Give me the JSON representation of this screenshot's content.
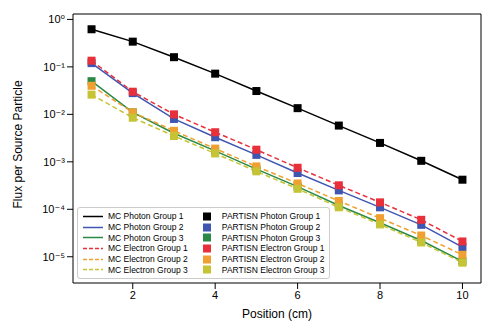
{
  "chart_data": {
    "type": "line",
    "xlabel": "Position (cm)",
    "ylabel": "Flux per Source Particle",
    "log": "y",
    "legend": "lower left",
    "x": [
      1,
      2,
      3,
      4,
      5,
      6,
      7,
      8,
      9,
      10
    ],
    "xlim": [
      0.55,
      10.45
    ],
    "xticks": [
      2,
      4,
      6,
      8,
      10
    ],
    "ylim": [
      2.8e-06,
      1.3
    ],
    "yticks": [
      {
        "value": 1e-05,
        "label": "10⁻⁵"
      },
      {
        "value": 0.0001,
        "label": "10⁻⁴"
      },
      {
        "value": 0.001,
        "label": "10⁻³"
      },
      {
        "value": 0.01,
        "label": "10⁻²"
      },
      {
        "value": 0.1,
        "label": "10⁻¹"
      },
      {
        "value": 1,
        "label": "10⁰"
      }
    ],
    "series": [
      {
        "name": "MC Photon Group 1",
        "color": "#000000",
        "line_style": "solid",
        "marker": "none",
        "values": [
          0.62,
          0.34,
          0.16,
          0.072,
          0.031,
          0.0135,
          0.0058,
          0.0025,
          0.00105,
          0.00042
        ]
      },
      {
        "name": "MC Photon Group 2",
        "color": "#3f56b0",
        "line_style": "solid",
        "marker": "none",
        "values": [
          0.12,
          0.028,
          0.008,
          0.0033,
          0.0014,
          0.00058,
          0.00025,
          0.00011,
          4.7e-05,
          1.6e-05
        ]
      },
      {
        "name": "MC Photon Group 3",
        "color": "#2a8a45",
        "line_style": "solid",
        "marker": "none",
        "values": [
          0.05,
          0.011,
          0.004,
          0.0017,
          0.0007,
          0.0003,
          0.00012,
          5.2e-05,
          2.2e-05,
          8e-06
        ]
      },
      {
        "name": "MC Electron Group 1",
        "color": "#e8303a",
        "line_style": "dashed",
        "marker": "none",
        "values": [
          0.135,
          0.03,
          0.01,
          0.0042,
          0.0018,
          0.00075,
          0.00032,
          0.00014,
          6e-05,
          2.1e-05
        ]
      },
      {
        "name": "MC Electron Group 2",
        "color": "#f0a030",
        "line_style": "dashed",
        "marker": "none",
        "values": [
          0.04,
          0.011,
          0.0045,
          0.0019,
          0.0008,
          0.00035,
          0.00015,
          6.5e-05,
          2.8e-05,
          1.1e-05
        ]
      },
      {
        "name": "MC Electron Group 3",
        "color": "#c6c434",
        "line_style": "dashed",
        "marker": "none",
        "values": [
          0.026,
          0.0085,
          0.0035,
          0.0015,
          0.00063,
          0.00027,
          0.00011,
          4.8e-05,
          2e-05,
          7.5e-06
        ]
      },
      {
        "name": "PARTISN Photon Group 1",
        "color": "#000000",
        "line_style": "none",
        "marker": "square",
        "values": [
          0.62,
          0.34,
          0.16,
          0.072,
          0.031,
          0.0135,
          0.0058,
          0.0025,
          0.00105,
          0.00042
        ]
      },
      {
        "name": "PARTISN Photon Group 2",
        "color": "#3f56b0",
        "line_style": "none",
        "marker": "square",
        "values": [
          0.12,
          0.028,
          0.008,
          0.0033,
          0.0014,
          0.00058,
          0.00025,
          0.00011,
          4.7e-05,
          1.6e-05
        ]
      },
      {
        "name": "PARTISN Photon Group 3",
        "color": "#2a8a45",
        "line_style": "none",
        "marker": "square",
        "values": [
          0.05,
          0.011,
          0.004,
          0.0017,
          0.0007,
          0.0003,
          0.00012,
          5.2e-05,
          2.2e-05,
          8e-06
        ]
      },
      {
        "name": "PARTISN Electron Group 1",
        "color": "#e8303a",
        "line_style": "none",
        "marker": "square",
        "values": [
          0.135,
          0.03,
          0.01,
          0.0042,
          0.0018,
          0.00075,
          0.00032,
          0.00014,
          6e-05,
          2.1e-05
        ]
      },
      {
        "name": "PARTISN Electron Group 2",
        "color": "#f0a030",
        "line_style": "none",
        "marker": "square",
        "values": [
          0.04,
          0.011,
          0.0045,
          0.0019,
          0.0008,
          0.00035,
          0.00015,
          6.5e-05,
          2.8e-05,
          1.1e-05
        ]
      },
      {
        "name": "PARTISN Electron Group 3",
        "color": "#c6c434",
        "line_style": "none",
        "marker": "square",
        "values": [
          0.026,
          0.0085,
          0.0035,
          0.0015,
          0.00063,
          0.00027,
          0.00011,
          4.8e-05,
          2e-05,
          7.5e-06
        ]
      }
    ]
  }
}
